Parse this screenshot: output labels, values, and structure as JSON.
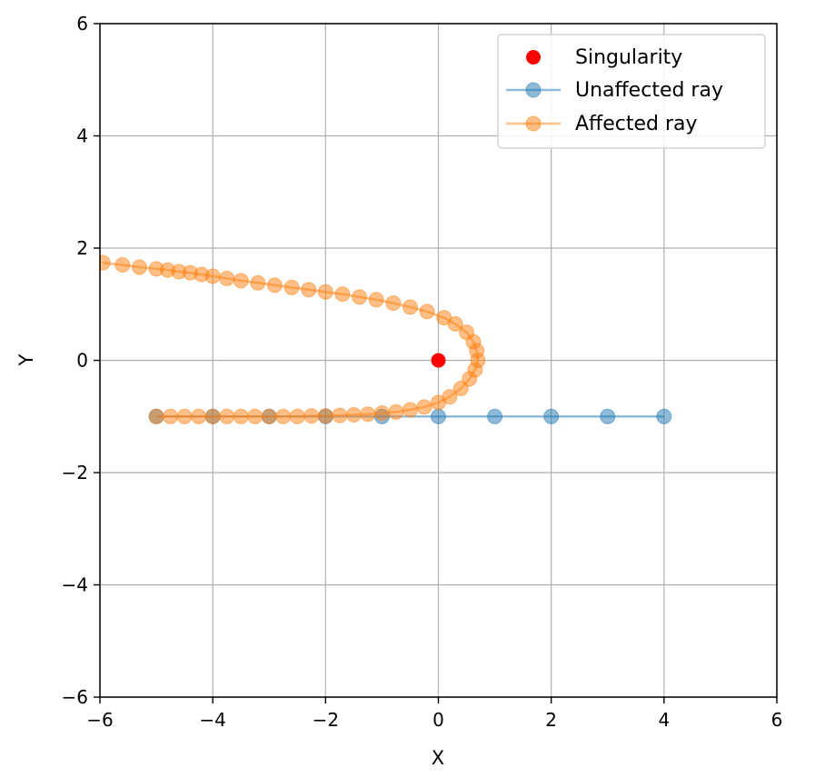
{
  "chart_data": {
    "type": "scatter",
    "title": "",
    "xlabel": "X",
    "ylabel": "Y",
    "xlim": [
      -6,
      6
    ],
    "ylim": [
      -6,
      6
    ],
    "xticks": [
      -6,
      -4,
      -2,
      0,
      2,
      4,
      6
    ],
    "yticks": [
      -6,
      -4,
      -2,
      0,
      2,
      4,
      6
    ],
    "grid": true,
    "legend_position": "upper right",
    "series": [
      {
        "name": "Singularity",
        "kind": "point",
        "color": "#ff0000",
        "points": [
          [
            0,
            0
          ]
        ]
      },
      {
        "name": "Unaffected ray",
        "kind": "line-marker",
        "color": "#1f77b4",
        "points": [
          [
            -5,
            -1
          ],
          [
            -4,
            -1
          ],
          [
            -3,
            -1
          ],
          [
            -2,
            -1
          ],
          [
            -1,
            -1
          ],
          [
            0,
            -1
          ],
          [
            1,
            -1
          ],
          [
            2,
            -1
          ],
          [
            3,
            -1
          ],
          [
            4,
            -1
          ]
        ]
      },
      {
        "name": "Affected ray",
        "kind": "line-marker",
        "color": "#ff7f0e",
        "points": [
          [
            -5.0,
            -1.0
          ],
          [
            -4.75,
            -1.0
          ],
          [
            -4.5,
            -1.0
          ],
          [
            -4.25,
            -1.0
          ],
          [
            -4.0,
            -1.0
          ],
          [
            -3.75,
            -1.0
          ],
          [
            -3.5,
            -1.0
          ],
          [
            -3.25,
            -1.0
          ],
          [
            -3.0,
            -1.0
          ],
          [
            -2.75,
            -1.0
          ],
          [
            -2.5,
            -1.0
          ],
          [
            -2.25,
            -0.99
          ],
          [
            -2.0,
            -0.99
          ],
          [
            -1.75,
            -0.98
          ],
          [
            -1.5,
            -0.97
          ],
          [
            -1.25,
            -0.96
          ],
          [
            -1.0,
            -0.94
          ],
          [
            -0.75,
            -0.92
          ],
          [
            -0.5,
            -0.88
          ],
          [
            -0.25,
            -0.83
          ],
          [
            0.0,
            -0.75
          ],
          [
            0.2,
            -0.65
          ],
          [
            0.4,
            -0.5
          ],
          [
            0.55,
            -0.33
          ],
          [
            0.65,
            -0.17
          ],
          [
            0.7,
            0.0
          ],
          [
            0.68,
            0.17
          ],
          [
            0.62,
            0.33
          ],
          [
            0.5,
            0.5
          ],
          [
            0.3,
            0.65
          ],
          [
            0.1,
            0.76
          ],
          [
            -0.2,
            0.87
          ],
          [
            -0.5,
            0.95
          ],
          [
            -0.8,
            1.02
          ],
          [
            -1.1,
            1.08
          ],
          [
            -1.4,
            1.13
          ],
          [
            -1.7,
            1.18
          ],
          [
            -2.0,
            1.22
          ],
          [
            -2.3,
            1.26
          ],
          [
            -2.6,
            1.3
          ],
          [
            -2.9,
            1.34
          ],
          [
            -3.2,
            1.38
          ],
          [
            -3.5,
            1.42
          ],
          [
            -3.75,
            1.46
          ],
          [
            -4.0,
            1.5
          ],
          [
            -4.2,
            1.53
          ],
          [
            -4.4,
            1.56
          ],
          [
            -4.6,
            1.58
          ],
          [
            -4.8,
            1.61
          ],
          [
            -5.0,
            1.63
          ],
          [
            -5.3,
            1.66
          ],
          [
            -5.6,
            1.7
          ],
          [
            -5.95,
            1.74
          ]
        ]
      }
    ]
  }
}
